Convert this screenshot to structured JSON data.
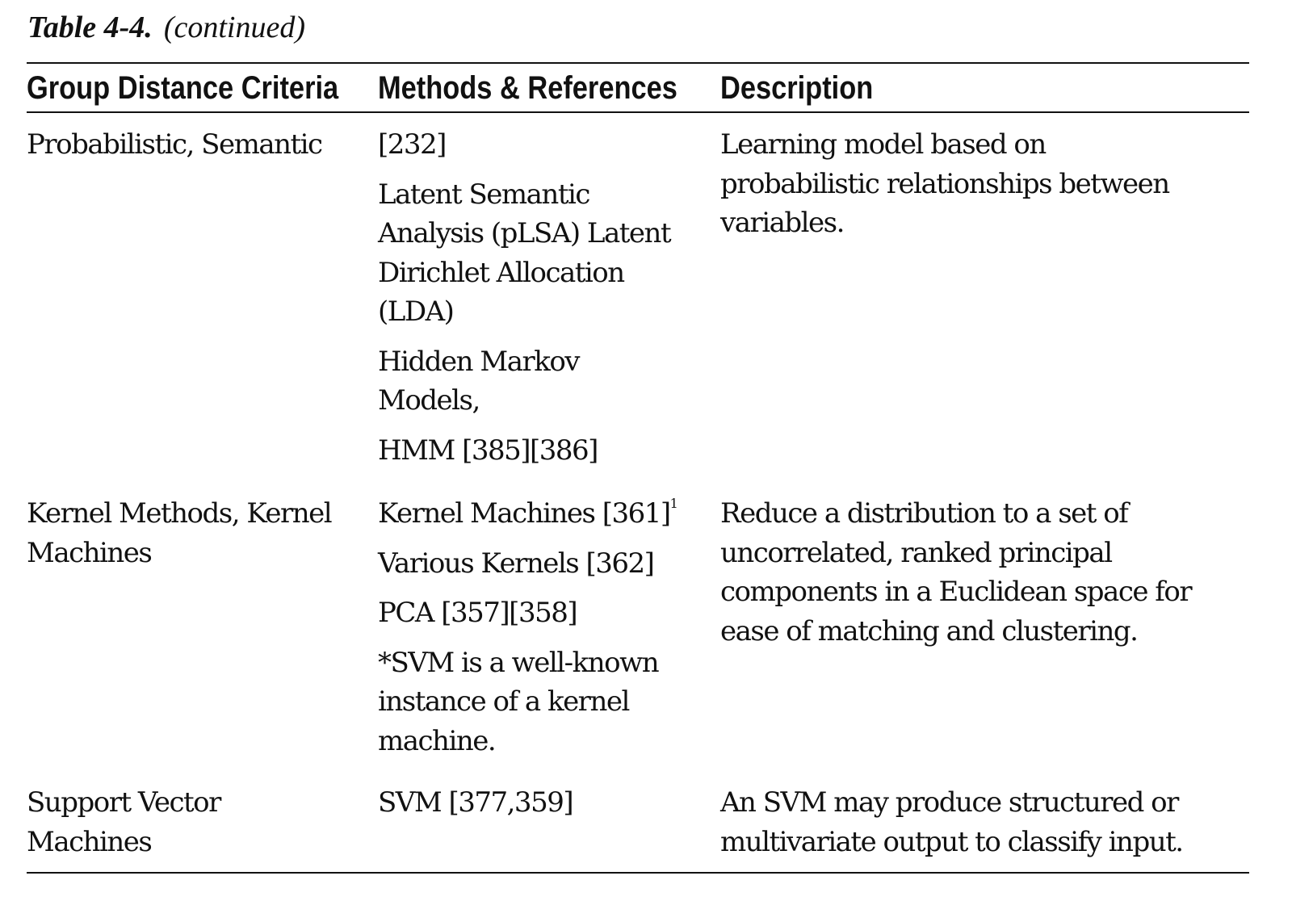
{
  "caption": {
    "label": "Table 4-4.",
    "continued": "(continued)"
  },
  "headers": [
    "Group Distance Criteria",
    "Methods & References",
    "Description"
  ],
  "rows": [
    {
      "criteria": [
        "Probabilistic, Semantic"
      ],
      "methods": [
        [
          "[232]"
        ],
        [
          "Latent Semantic",
          "Analysis (pLSA) Latent",
          "Dirichlet Allocation",
          "(LDA)"
        ],
        [
          "Hidden Markov",
          "Models,"
        ],
        [
          "HMM [385][386]"
        ]
      ],
      "description": [
        "Learning model based on",
        "probabilistic relationships between",
        "variables."
      ]
    },
    {
      "criteria": [
        "Kernel Methods, Kernel",
        "Machines"
      ],
      "methods": [
        [
          "Kernel Machines [361]"
        ],
        [
          "Various Kernels [362]"
        ],
        [
          "PCA [357][358]"
        ],
        [
          "*SVM is a well-known",
          "instance of a kernel",
          "machine."
        ]
      ],
      "methods_footnote": "1",
      "description": [
        "Reduce a distribution to a set of",
        "uncorrelated, ranked principal",
        "components in a Euclidean space for",
        "ease of matching and clustering."
      ]
    },
    {
      "criteria": [
        "Support Vector",
        "Machines"
      ],
      "methods": [
        [
          "SVM [377,359]"
        ]
      ],
      "description": [
        "An SVM may produce structured or",
        "multivariate output to classify input."
      ]
    }
  ]
}
